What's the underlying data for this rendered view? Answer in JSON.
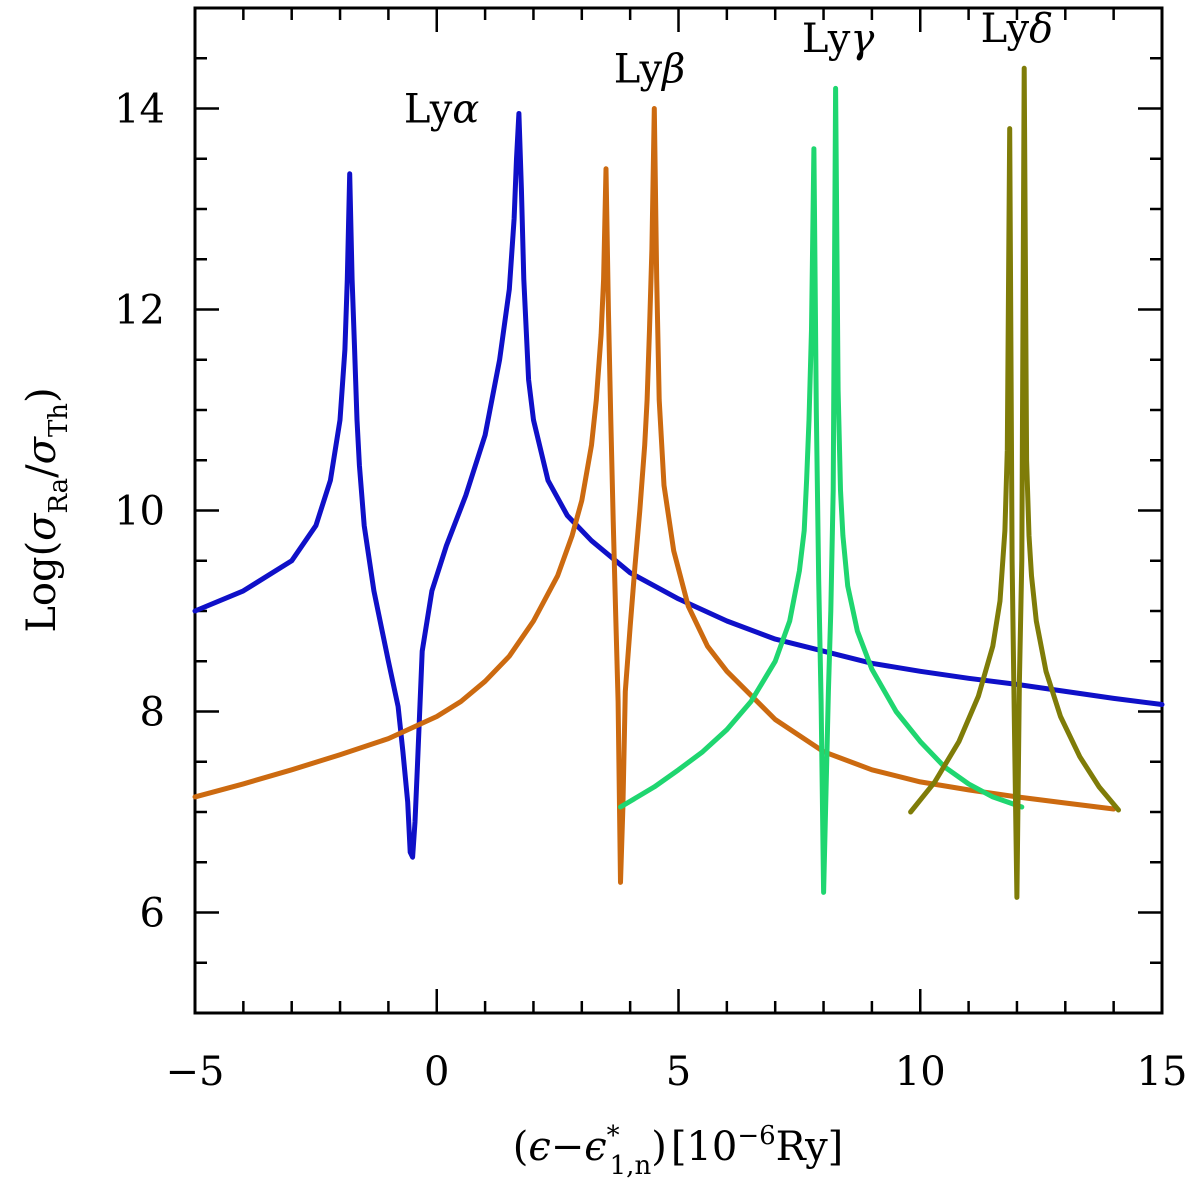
{
  "chart_data": {
    "type": "line",
    "title": "",
    "xlabel": {
      "open": "(",
      "eps": "ϵ",
      "minus": "−",
      "eps2": "ϵ",
      "star": "*",
      "sub": "1,n",
      "close": ")",
      "unit_open": "[10",
      "unit_exp": "−6",
      "unit_rest": "Ry]"
    },
    "ylabel": {
      "log": "Log(",
      "sigma1": "σ",
      "sub1": "Ra",
      "slash": "/",
      "sigma2": "σ",
      "sub2": "Th",
      "close": ")"
    },
    "xlim": [
      -5,
      15
    ],
    "ylim": [
      5,
      15
    ],
    "xticks": [
      -5,
      0,
      5,
      10,
      15
    ],
    "yticks": [
      6,
      8,
      10,
      12,
      14
    ],
    "xtick_labels": [
      "−5",
      "0",
      "5",
      "10",
      "15"
    ],
    "ytick_labels": [
      "6",
      "8",
      "10",
      "12",
      "14"
    ],
    "grid": false,
    "series": [
      {
        "name": "Lyα",
        "latin": "Ly",
        "greek": "α",
        "color": "#0f10c8",
        "label_pos": [
          0.1,
          14.0
        ],
        "x": [
          -5,
          -4,
          -3,
          -2.5,
          -2.2,
          -2.0,
          -1.9,
          -1.85,
          -1.8,
          -1.75,
          -1.7,
          -1.65,
          -1.6,
          -1.5,
          -1.3,
          -1.0,
          -0.8,
          -0.7,
          -0.6,
          -0.55,
          -0.5,
          -0.45,
          -0.4,
          -0.3,
          -0.1,
          0.2,
          0.6,
          1.0,
          1.3,
          1.5,
          1.6,
          1.65,
          1.7,
          1.75,
          1.8,
          1.9,
          2.0,
          2.3,
          2.7,
          3.2,
          4.0,
          5.0,
          6.0,
          7.0,
          8.0,
          9.0,
          10.0,
          11.0,
          12.0,
          13.0,
          14.0,
          15.0
        ],
        "y": [
          9.0,
          9.2,
          9.5,
          9.85,
          10.3,
          10.9,
          11.6,
          12.3,
          13.35,
          12.3,
          11.6,
          10.9,
          10.45,
          9.85,
          9.2,
          8.5,
          8.05,
          7.6,
          7.1,
          6.6,
          6.55,
          6.9,
          7.45,
          8.6,
          9.2,
          9.65,
          10.15,
          10.75,
          11.5,
          12.2,
          12.9,
          13.5,
          13.95,
          13.2,
          12.3,
          11.3,
          10.9,
          10.3,
          9.95,
          9.7,
          9.38,
          9.12,
          8.9,
          8.72,
          8.6,
          8.48,
          8.4,
          8.33,
          8.27,
          8.2,
          8.13,
          8.07
        ]
      },
      {
        "name": "Lyβ",
        "latin": "Ly",
        "greek": "β",
        "color": "#cc6a10",
        "label_pos": [
          4.4,
          14.4
        ],
        "x": [
          -5,
          -4,
          -3,
          -2,
          -1,
          0,
          0.5,
          1.0,
          1.5,
          2.0,
          2.5,
          2.8,
          3.0,
          3.2,
          3.3,
          3.4,
          3.45,
          3.5,
          3.55,
          3.6,
          3.65,
          3.7,
          3.75,
          3.8,
          3.85,
          3.9,
          4.0,
          4.1,
          4.2,
          4.3,
          4.35,
          4.4,
          4.45,
          4.5,
          4.55,
          4.6,
          4.7,
          4.9,
          5.2,
          5.6,
          6.0,
          7.0,
          8.0,
          9.0,
          10.0,
          11.0,
          12.0,
          13.0,
          14.0
        ],
        "y": [
          7.15,
          7.28,
          7.42,
          7.57,
          7.73,
          7.95,
          8.1,
          8.3,
          8.55,
          8.9,
          9.35,
          9.75,
          10.1,
          10.65,
          11.1,
          11.75,
          12.3,
          13.4,
          12.0,
          10.9,
          9.9,
          9.0,
          8.1,
          6.3,
          7.05,
          8.2,
          8.85,
          9.45,
          10.0,
          10.65,
          11.1,
          11.8,
          12.6,
          14.0,
          12.3,
          11.1,
          10.25,
          9.6,
          9.05,
          8.65,
          8.4,
          7.92,
          7.6,
          7.42,
          7.3,
          7.22,
          7.15,
          7.09,
          7.03
        ]
      },
      {
        "name": "Lyγ",
        "latin": "Ly",
        "greek": "γ",
        "color": "#1fd670",
        "label_pos": [
          8.3,
          14.7
        ],
        "x": [
          3.8,
          4.5,
          5.0,
          5.5,
          6.0,
          6.5,
          7.0,
          7.3,
          7.5,
          7.6,
          7.65,
          7.7,
          7.75,
          7.8,
          7.85,
          7.9,
          7.95,
          8.0,
          8.05,
          8.1,
          8.15,
          8.2,
          8.25,
          8.3,
          8.35,
          8.4,
          8.5,
          8.7,
          9.0,
          9.5,
          10.0,
          10.5,
          11.0,
          11.5,
          12.1
        ],
        "y": [
          7.05,
          7.25,
          7.42,
          7.6,
          7.82,
          8.1,
          8.5,
          8.9,
          9.4,
          9.8,
          10.3,
          10.9,
          11.8,
          13.6,
          11.0,
          9.3,
          8.1,
          6.2,
          7.2,
          8.2,
          9.0,
          10.2,
          14.2,
          11.2,
          10.2,
          9.75,
          9.25,
          8.8,
          8.42,
          8.0,
          7.7,
          7.45,
          7.28,
          7.15,
          7.05
        ]
      },
      {
        "name": "Lyδ",
        "latin": "Ly",
        "greek": "δ",
        "color": "#7f7c08",
        "label_pos": [
          12.0,
          14.8
        ],
        "x": [
          9.8,
          10.3,
          10.8,
          11.2,
          11.5,
          11.65,
          11.75,
          11.8,
          11.85,
          11.9,
          11.95,
          12.0,
          12.05,
          12.1,
          12.15,
          12.2,
          12.25,
          12.3,
          12.4,
          12.6,
          12.9,
          13.3,
          13.7,
          14.1
        ],
        "y": [
          7.0,
          7.3,
          7.7,
          8.15,
          8.65,
          9.1,
          9.8,
          10.6,
          13.8,
          9.5,
          7.8,
          6.15,
          8.3,
          9.5,
          14.4,
          10.5,
          9.75,
          9.35,
          8.9,
          8.4,
          7.95,
          7.55,
          7.25,
          7.02
        ]
      }
    ]
  }
}
